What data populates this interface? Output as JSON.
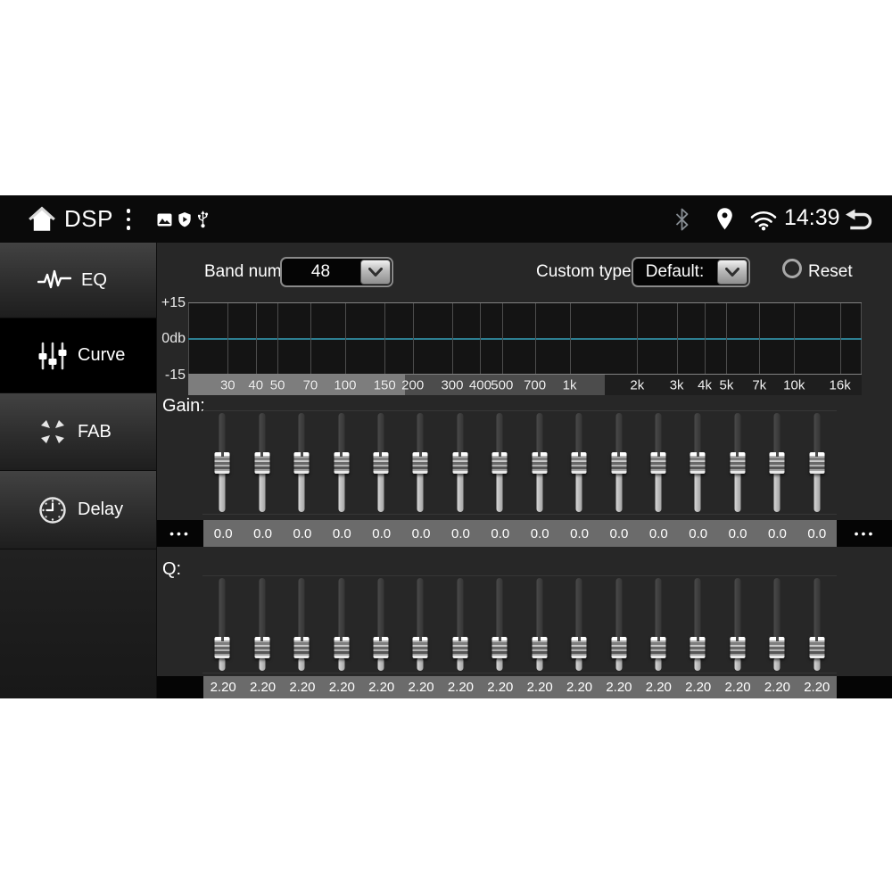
{
  "status_bar": {
    "title": "DSP",
    "clock": "14:39",
    "icons": {
      "home": "home-icon",
      "menu": "kebab-menu-icon",
      "gallery": "image-icon",
      "shield": "shield-play-icon",
      "usb": "usb-icon",
      "bluetooth": "bluetooth-icon",
      "location": "location-pin-icon",
      "wifi": "wifi-icon",
      "back": "back-arrow-icon"
    }
  },
  "sidebar": {
    "items": [
      {
        "label": "EQ",
        "icon": "waveform-icon",
        "selected": false
      },
      {
        "label": "Curve",
        "icon": "faders-icon",
        "selected": true
      },
      {
        "label": "FAB",
        "icon": "fab-arrows-icon",
        "selected": false
      },
      {
        "label": "Delay",
        "icon": "clock-icon",
        "selected": false
      }
    ]
  },
  "controls": {
    "band_num_label": "Band num:",
    "band_num_value": "48",
    "custom_type_label": "Custom type:",
    "custom_type_value": "Default:",
    "reset_label": "Reset"
  },
  "graph": {
    "y_axis_labels": [
      "+15",
      "0db",
      "-15"
    ],
    "zero_line_color": "#2d7f92",
    "freq_min": 20,
    "freq_max": 20000,
    "freq_values": [
      30,
      40,
      50,
      70,
      100,
      150,
      200,
      300,
      400,
      500,
      700,
      1000,
      2000,
      3000,
      4000,
      5000,
      7000,
      10000,
      16000
    ],
    "freq_ticks": [
      "30",
      "40",
      "50",
      "70",
      "100",
      "150",
      "200",
      "300",
      "400",
      "500",
      "700",
      "1k",
      "2k",
      "3k",
      "4k",
      "5k",
      "7k",
      "10k",
      "16k"
    ],
    "axis_segment_colors": [
      "#7d7d7d",
      "#4c4c4c",
      "#1e1e1e"
    ],
    "response_db": 0
  },
  "gain": {
    "label": "Gain:",
    "values": [
      "0.0",
      "0.0",
      "0.0",
      "0.0",
      "0.0",
      "0.0",
      "0.0",
      "0.0",
      "0.0",
      "0.0",
      "0.0",
      "0.0",
      "0.0",
      "0.0",
      "0.0",
      "0.0"
    ],
    "more_left": "•••",
    "more_right": "•••"
  },
  "q": {
    "label": "Q:",
    "values": [
      "2.20",
      "2.20",
      "2.20",
      "2.20",
      "2.20",
      "2.20",
      "2.20",
      "2.20",
      "2.20",
      "2.20",
      "2.20",
      "2.20",
      "2.20",
      "2.20",
      "2.20",
      "2.20"
    ]
  }
}
